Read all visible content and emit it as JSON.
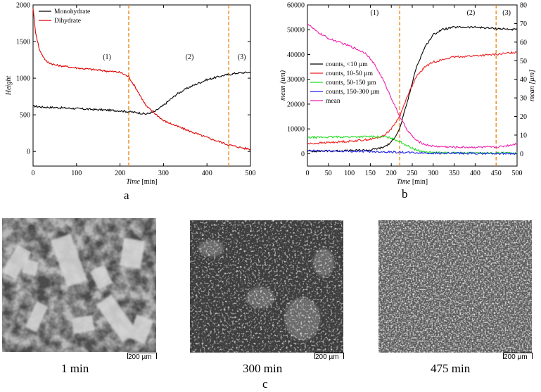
{
  "panel_a_letter": "a",
  "panel_b_letter": "b",
  "panel_c_letter": "c",
  "chart_data": [
    {
      "type": "line",
      "xlabel_italic": "Time",
      "xlabel_unit": "[min]",
      "ylabel": "Height",
      "xlim": [
        0,
        500
      ],
      "ylim": [
        -200,
        2000
      ],
      "xticks": [
        0,
        100,
        200,
        300,
        400,
        500
      ],
      "yticks": [
        0,
        500,
        1000,
        1500,
        2000
      ],
      "vlines": [
        220,
        450
      ],
      "phases": [
        {
          "label": "(1)",
          "x": 170,
          "y": 1260
        },
        {
          "label": "(2)",
          "x": 360,
          "y": 1260
        },
        {
          "label": "(3)",
          "x": 480,
          "y": 1260
        }
      ],
      "legend_position": "top-left",
      "series": [
        {
          "name": "Monohydrate",
          "color": "#000000",
          "x": [
            0,
            20,
            50,
            100,
            150,
            200,
            240,
            260,
            280,
            300,
            330,
            360,
            400,
            440,
            470,
            500
          ],
          "y": [
            620,
            605,
            600,
            585,
            570,
            555,
            530,
            510,
            545,
            630,
            780,
            880,
            980,
            1040,
            1070,
            1080
          ]
        },
        {
          "name": "Dihydrate",
          "color": "#e00000",
          "x": [
            0,
            5,
            15,
            30,
            50,
            100,
            150,
            200,
            220,
            240,
            260,
            280,
            300,
            350,
            400,
            450,
            480,
            500
          ],
          "y": [
            1960,
            1650,
            1380,
            1230,
            1180,
            1140,
            1110,
            1080,
            1020,
            830,
            620,
            520,
            420,
            300,
            190,
            90,
            50,
            30
          ]
        }
      ]
    },
    {
      "type": "line",
      "xlabel_italic": "Time",
      "xlabel_unit": "[min]",
      "ylabel": "mean (um)",
      "ylabel_right": "mean [µm]",
      "xlim": [
        0,
        500
      ],
      "ylim": [
        -5000,
        60000
      ],
      "ylim_right": [
        -6.6667,
        80
      ],
      "xticks": [
        0,
        50,
        100,
        150,
        200,
        250,
        300,
        350,
        400,
        450,
        500
      ],
      "yticks": [
        0,
        10000,
        20000,
        30000,
        40000,
        50000,
        60000
      ],
      "yticks_right": [
        0,
        10,
        20,
        30,
        40,
        50,
        60,
        70,
        80
      ],
      "vlines": [
        220,
        450
      ],
      "phases": [
        {
          "label": "(1)",
          "x": 160,
          "y": 56000
        },
        {
          "label": "(2)",
          "x": 390,
          "y": 56000
        },
        {
          "label": "(3)",
          "x": 475,
          "y": 56000
        }
      ],
      "legend_position": "center-left",
      "series": [
        {
          "name": "counts, <10 µm",
          "color": "#000000",
          "axis": "left",
          "x": [
            0,
            50,
            100,
            150,
            180,
            200,
            220,
            240,
            260,
            280,
            300,
            320,
            350,
            400,
            450,
            500
          ],
          "y": [
            1000,
            1100,
            1200,
            1500,
            2500,
            4500,
            10000,
            22000,
            35000,
            43000,
            48000,
            50000,
            51000,
            51000,
            50500,
            50000
          ]
        },
        {
          "name": "counts, 10-50 µm",
          "color": "#ee2222",
          "axis": "left",
          "x": [
            0,
            50,
            100,
            150,
            180,
            200,
            220,
            240,
            260,
            280,
            300,
            350,
            400,
            450,
            500
          ],
          "y": [
            4000,
            4500,
            5000,
            5800,
            7000,
            10000,
            15000,
            24000,
            31000,
            35000,
            37000,
            39000,
            39500,
            40000,
            41000
          ]
        },
        {
          "name": "counts, 50-150 µm",
          "color": "#22dd22",
          "axis": "left",
          "x": [
            0,
            50,
            100,
            150,
            180,
            200,
            220,
            240,
            260,
            280,
            300,
            350,
            400,
            450,
            500
          ],
          "y": [
            6500,
            6700,
            6800,
            6900,
            6800,
            6300,
            5000,
            3000,
            1500,
            700,
            400,
            300,
            250,
            250,
            250
          ]
        },
        {
          "name": "counts, 150-300 µm",
          "color": "#2222ee",
          "axis": "left",
          "x": [
            0,
            50,
            100,
            150,
            200,
            250,
            300,
            350,
            400,
            450,
            500
          ],
          "y": [
            1200,
            1100,
            1000,
            900,
            700,
            400,
            200,
            150,
            120,
            100,
            100
          ]
        },
        {
          "name": "mean",
          "color": "#ee22aa",
          "axis": "right",
          "x": [
            0,
            20,
            50,
            100,
            140,
            160,
            180,
            200,
            220,
            240,
            260,
            280,
            300,
            350,
            400,
            450,
            480,
            500
          ],
          "y": [
            70,
            66,
            62,
            58,
            54,
            48,
            40,
            30,
            20,
            12,
            7,
            5,
            4,
            3.5,
            3.5,
            3.5,
            4.5,
            5.5
          ]
        }
      ]
    }
  ],
  "micrographs": [
    {
      "caption": "1 min",
      "scale_label": "200 µm"
    },
    {
      "caption": "300 min",
      "scale_label": "200 µm"
    },
    {
      "caption": "475 min",
      "scale_label": "200 µm"
    }
  ]
}
